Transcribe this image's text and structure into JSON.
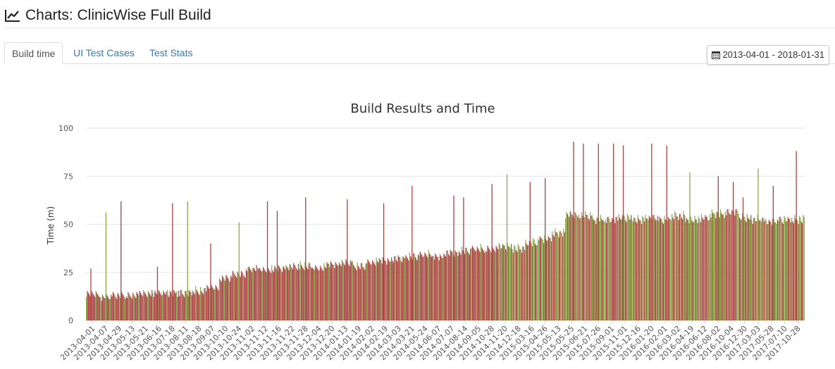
{
  "header": {
    "title": "Charts: ClinicWise Full Build"
  },
  "tabs": [
    {
      "label": "Build time",
      "active": true
    },
    {
      "label": "UI Test Cases",
      "active": false
    },
    {
      "label": "Test Stats",
      "active": false
    }
  ],
  "date_range": {
    "label": "2013-04-01 - 2018-01-31"
  },
  "colors": {
    "success": "#8aa847",
    "failure": "#a94442",
    "link": "#337ab7",
    "grid": "#e6e6e6"
  },
  "chart_data": {
    "type": "bar",
    "title": "Build Results and Time",
    "xlabel": "",
    "ylabel": "Time (m)",
    "ylim": [
      0,
      100
    ],
    "yticks": [
      0,
      25,
      50,
      75,
      100
    ],
    "grid": true,
    "categories": [
      "2013-04-01",
      "2013-04-07",
      "2013-04-29",
      "2013-05-13",
      "2013-05-21",
      "2013-06-16",
      "2013-07-18",
      "2013-08-11",
      "2013-08-18",
      "2013-09-07",
      "2013-10-10",
      "2013-10-24",
      "2013-11-02",
      "2013-11-12",
      "2013-11-16",
      "2013-11-22",
      "2013-11-28",
      "2013-12-04",
      "2013-12-20",
      "2014-01-13",
      "2014-01-19",
      "2014-02-02",
      "2014-02-19",
      "2014-03-03",
      "2014-03-21",
      "2014-05-24",
      "2014-06-07",
      "2014-07-07",
      "2014-08-14",
      "2014-09-05",
      "2014-10-28",
      "2014-11-20",
      "2014-12-18",
      "2015-03-16",
      "2015-04-26",
      "2015-05-13",
      "2015-05-25",
      "2015-06-21",
      "2015-07-26",
      "2015-09-01",
      "2015-11-01",
      "2015-12-16",
      "2016-01-20",
      "2016-02-01",
      "2016-03-02",
      "2016-04-19",
      "2016-06-12",
      "2016-08-02",
      "2016-10-04",
      "2016-12-30",
      "2017-03-03",
      "2017-05-28",
      "2017-07-10",
      "2017-10-28"
    ],
    "series": [
      {
        "result": "failure",
        "color": "#a94442",
        "values": [
          14,
          12,
          13,
          13,
          14,
          14,
          14,
          14,
          15,
          17,
          22,
          24,
          27,
          26,
          27,
          28,
          28,
          27,
          29,
          30,
          28,
          30,
          31,
          32,
          33,
          34,
          33,
          35,
          36,
          37,
          37,
          38,
          37,
          40,
          42,
          45,
          55,
          54,
          52,
          52,
          53,
          52,
          53,
          52,
          54,
          52,
          53,
          55,
          56,
          53,
          52,
          51,
          52,
          52
        ]
      },
      {
        "result": "success",
        "color": "#8aa847",
        "values": [
          14,
          13,
          13,
          13,
          14,
          15,
          16,
          15,
          16,
          18,
          22,
          24,
          26,
          27,
          27,
          28,
          29,
          28,
          30,
          30,
          29,
          31,
          32,
          33,
          34,
          35,
          34,
          36,
          37,
          38,
          37,
          39,
          38,
          41,
          43,
          46,
          55,
          55,
          53,
          53,
          54,
          53,
          54,
          53,
          55,
          53,
          54,
          56,
          57,
          54,
          53,
          52,
          53,
          53
        ]
      }
    ],
    "spikes": [
      {
        "x": "2013-04-01",
        "value": 27,
        "result": "failure"
      },
      {
        "x": "2013-04-07",
        "value": 56,
        "result": "success"
      },
      {
        "x": "2013-04-29",
        "value": 62,
        "result": "failure"
      },
      {
        "x": "2013-06-16",
        "value": 28,
        "result": "failure"
      },
      {
        "x": "2013-07-18",
        "value": 61,
        "result": "failure"
      },
      {
        "x": "2013-08-11",
        "value": 62,
        "result": "success"
      },
      {
        "x": "2013-09-07",
        "value": 40,
        "result": "failure"
      },
      {
        "x": "2013-10-24",
        "value": 51,
        "result": "success"
      },
      {
        "x": "2013-11-12",
        "value": 62,
        "result": "failure"
      },
      {
        "x": "2013-11-16",
        "value": 57,
        "result": "failure"
      },
      {
        "x": "2013-11-28",
        "value": 64,
        "result": "failure"
      },
      {
        "x": "2014-01-13",
        "value": 63,
        "result": "failure"
      },
      {
        "x": "2014-02-19",
        "value": 61,
        "result": "failure"
      },
      {
        "x": "2014-03-21",
        "value": 70,
        "result": "failure"
      },
      {
        "x": "2014-07-07",
        "value": 65,
        "result": "failure"
      },
      {
        "x": "2014-08-14",
        "value": 64,
        "result": "failure"
      },
      {
        "x": "2014-10-28",
        "value": 71,
        "result": "failure"
      },
      {
        "x": "2014-11-20",
        "value": 76,
        "result": "success"
      },
      {
        "x": "2015-03-16",
        "value": 72,
        "result": "failure"
      },
      {
        "x": "2015-04-26",
        "value": 74,
        "result": "failure"
      },
      {
        "x": "2015-05-25",
        "value": 93,
        "result": "failure"
      },
      {
        "x": "2015-06-21",
        "value": 92,
        "result": "failure"
      },
      {
        "x": "2015-07-26",
        "value": 92,
        "result": "failure"
      },
      {
        "x": "2015-09-01",
        "value": 92,
        "result": "failure"
      },
      {
        "x": "2015-11-01",
        "value": 91,
        "result": "failure"
      },
      {
        "x": "2016-01-20",
        "value": 92,
        "result": "failure"
      },
      {
        "x": "2016-02-01",
        "value": 91,
        "result": "failure"
      },
      {
        "x": "2016-04-19",
        "value": 77,
        "result": "success"
      },
      {
        "x": "2016-08-02",
        "value": 75,
        "result": "failure"
      },
      {
        "x": "2016-10-04",
        "value": 72,
        "result": "failure"
      },
      {
        "x": "2016-12-30",
        "value": 64,
        "result": "failure"
      },
      {
        "x": "2017-03-03",
        "value": 79,
        "result": "success"
      },
      {
        "x": "2017-05-28",
        "value": 70,
        "result": "failure"
      },
      {
        "x": "2017-10-28",
        "value": 88,
        "result": "failure"
      }
    ]
  }
}
